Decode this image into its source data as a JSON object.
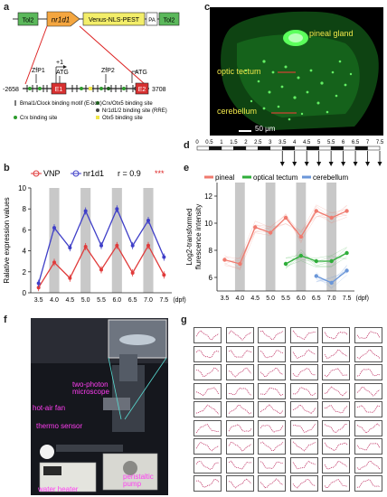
{
  "panels": {
    "a": "a",
    "b": "b",
    "c": "c",
    "d": "d",
    "e": "e",
    "f": "f",
    "g": "g"
  },
  "construct": {
    "tol2_left": "Tol2",
    "gene": "nr1d1",
    "reporter": "Venus-NLS-PEST",
    "pa": "PA",
    "tol2_right": "Tol2",
    "pos_start": "-2658",
    "pos_end": "3708",
    "plus_one": "+1",
    "zfp1": "ZfP1",
    "zfp2": "ZfP2",
    "atg1": "ATG",
    "atg2": "ATG",
    "e1": "E1",
    "e2": "E2"
  },
  "legend_a": {
    "ebox": "Bmal1/Clock binding motif (E-box)",
    "crx": "Crx binding site",
    "crx_otx5": "Crx/Otx5 binding site",
    "rre": "Nr1d1/2 binding site (RRE)",
    "otx5": "Otx5 binding site"
  },
  "panel_c": {
    "pineal": "pineal gland",
    "tectum": "optic tectum",
    "cerebellum": "cerebellum",
    "scale": "50 μm"
  },
  "panel_d": {
    "ticks": [
      "0",
      "0.5",
      "1",
      "1.5",
      "2",
      "2.5",
      "3",
      "3.5",
      "4",
      "4.5",
      "5",
      "5.5",
      "6",
      "6.5",
      "7",
      "7.5"
    ]
  },
  "chart_b": {
    "type": "line",
    "ylabel": "Ralative expression values",
    "xunit": "(dpf)",
    "corr_label": "r = 0.9",
    "corr_stars": "***",
    "x": [
      "3.5",
      "4.0",
      "4.5",
      "5.0",
      "5.5",
      "6.0",
      "6.5",
      "7.0",
      "7.5"
    ],
    "ylim": [
      0,
      10
    ],
    "yticks": [
      "0",
      "2",
      "4",
      "6",
      "8",
      "10"
    ],
    "series": [
      {
        "name": "VNP",
        "color": "#e03b3b",
        "values": [
          0.5,
          2.9,
          1.4,
          4.4,
          2.2,
          4.5,
          1.9,
          4.5,
          1.7
        ]
      },
      {
        "name": "nr1d1",
        "color": "#3f3fc8",
        "values": [
          0.9,
          6.2,
          4.3,
          7.8,
          4.5,
          8.0,
          4.5,
          6.9,
          3.4
        ]
      }
    ]
  },
  "chart_e": {
    "type": "line",
    "ylabel_1": "Log2-transformed",
    "ylabel_2": "flurescence intensity",
    "xunit": "(dpf)",
    "x": [
      "3.5",
      "4.0",
      "4.5",
      "5.0",
      "5.5",
      "6.0",
      "6.5",
      "7.0",
      "7.5"
    ],
    "ylim": [
      5,
      13
    ],
    "yticks": [
      "6",
      "8",
      "10",
      "12"
    ],
    "series": [
      {
        "name": "pineal",
        "color": "#f07a6e",
        "values": [
          7.3,
          7.0,
          9.7,
          9.3,
          10.4,
          9.0,
          10.9,
          10.4,
          10.9
        ]
      },
      {
        "name": "optical tectum",
        "color": "#2fae3a",
        "values": [
          null,
          null,
          null,
          null,
          7.0,
          7.6,
          7.2,
          7.2,
          7.8
        ]
      },
      {
        "name": "cerebellum",
        "color": "#6b97d9",
        "values": [
          null,
          null,
          null,
          null,
          null,
          null,
          6.1,
          5.6,
          6.5
        ]
      }
    ]
  },
  "panel_f": {
    "two_photon": "two-photon microscope",
    "hot_air": "hot-air fan",
    "thermo": "thermo sensor",
    "heater": "water heater",
    "pump": "peristaltic pump"
  }
}
